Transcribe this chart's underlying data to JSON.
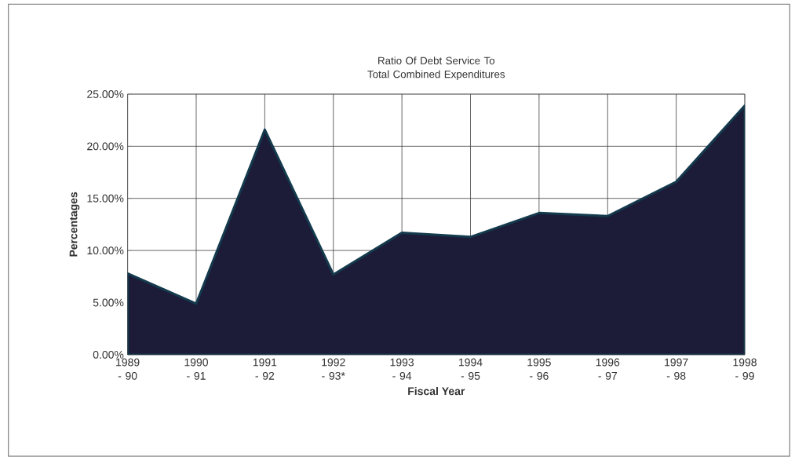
{
  "chart_data": {
    "type": "area",
    "title": "Ratio Of Debt Service To Total Combined Expenditures",
    "xlabel": "Fiscal Year",
    "ylabel": "Percentages",
    "categories": [
      "1989 - 90",
      "1990 - 91",
      "1991 - 92",
      "1992 - 93*",
      "1993 - 94",
      "1994 - 95",
      "1995 - 96",
      "1996 - 97",
      "1997 - 98",
      "1998 - 99"
    ],
    "values": [
      7.8,
      4.9,
      21.6,
      7.7,
      11.7,
      11.3,
      13.6,
      13.3,
      16.6,
      23.9
    ],
    "color": "#1c1c38",
    "ylim": [
      0,
      25
    ],
    "yticks": [
      {
        "value": 0,
        "label": "0.00%"
      },
      {
        "value": 5,
        "label": "5.00%"
      },
      {
        "value": 10,
        "label": "10.00%"
      },
      {
        "value": 15,
        "label": "15.00%"
      },
      {
        "value": 20,
        "label": "20.00%"
      },
      {
        "value": 25,
        "label": "25.00%"
      }
    ],
    "grid": true
  }
}
